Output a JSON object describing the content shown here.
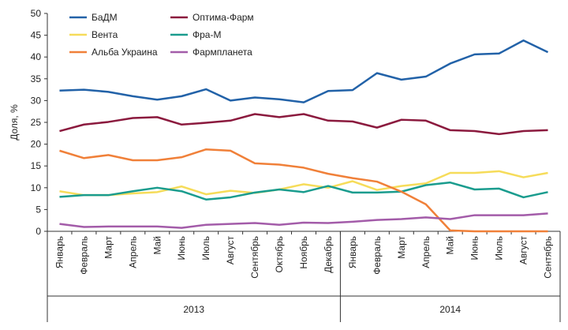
{
  "chart_data": {
    "type": "line",
    "y_label": "Доля, %",
    "categories": [
      "Январь",
      "Февраль",
      "Март",
      "Апрель",
      "Май",
      "Июнь",
      "Июль",
      "Август",
      "Сентябрь",
      "Октябрь",
      "Ноябрь",
      "Декабрь",
      "Январь",
      "Февраль",
      "Март",
      "Апрель",
      "Май",
      "Июнь",
      "Июль",
      "Август",
      "Сентябрь"
    ],
    "years": [
      "2013",
      "2014"
    ],
    "ylim": [
      0,
      50
    ],
    "yticks": [
      0,
      5,
      10,
      15,
      20,
      25,
      30,
      35,
      40,
      45,
      50
    ],
    "grid": false,
    "series": [
      {
        "name": "БаДМ",
        "color": "#2262a8",
        "values": [
          32.3,
          32.5,
          32.0,
          31.0,
          30.2,
          31.0,
          32.6,
          30.0,
          30.7,
          30.3,
          29.6,
          32.2,
          32.4,
          36.3,
          34.8,
          35.5,
          38.5,
          40.6,
          40.8,
          43.8,
          41.1
        ]
      },
      {
        "name": "Оптима-Фарм",
        "color": "#8b1a3e",
        "values": [
          23.0,
          24.5,
          25.1,
          26.0,
          26.2,
          24.5,
          24.9,
          25.4,
          26.9,
          26.2,
          26.9,
          25.4,
          25.2,
          23.8,
          25.6,
          25.4,
          23.2,
          23.0,
          22.3,
          23.0,
          23.2
        ]
      },
      {
        "name": "Вента",
        "color": "#f6dc5a",
        "values": [
          9.2,
          8.3,
          8.3,
          8.7,
          9.0,
          10.3,
          8.5,
          9.3,
          8.8,
          9.6,
          10.8,
          10.0,
          11.5,
          9.5,
          10.4,
          11.0,
          13.4,
          13.4,
          13.8,
          12.4,
          13.4
        ]
      },
      {
        "name": "Фра-М",
        "color": "#1a9c8e",
        "values": [
          7.9,
          8.3,
          8.3,
          9.2,
          10.0,
          9.2,
          7.3,
          7.8,
          8.9,
          9.6,
          9.0,
          10.4,
          8.9,
          8.9,
          9.1,
          10.6,
          11.2,
          9.6,
          9.8,
          7.8,
          9.0
        ]
      },
      {
        "name": "Альба Украина",
        "color": "#f08039",
        "values": [
          18.5,
          16.8,
          17.5,
          16.3,
          16.3,
          17.0,
          18.8,
          18.5,
          15.6,
          15.3,
          14.6,
          13.2,
          12.2,
          11.4,
          9.1,
          6.2,
          0.2,
          0,
          0,
          0,
          0
        ]
      },
      {
        "name": "Фармпланета",
        "color": "#a35ca9",
        "values": [
          1.7,
          1.0,
          1.1,
          1.1,
          1.1,
          0.8,
          1.5,
          1.7,
          1.9,
          1.5,
          2.0,
          1.9,
          2.2,
          2.6,
          2.8,
          3.2,
          2.8,
          3.7,
          3.7,
          3.7,
          4.1
        ]
      }
    ]
  }
}
